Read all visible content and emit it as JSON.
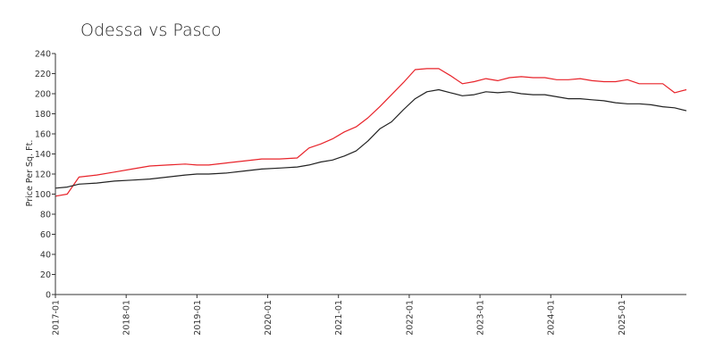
{
  "chart_data": {
    "type": "line",
    "title": "Odessa vs Pasco",
    "xlabel": "",
    "ylabel": "Price Per Sq. Ft.",
    "ylim": [
      0,
      240
    ],
    "yticks": [
      0,
      20,
      40,
      60,
      80,
      100,
      120,
      140,
      160,
      180,
      200,
      220,
      240
    ],
    "xrange": [
      "2017-01",
      "2025-12"
    ],
    "xticks": [
      "2017-01",
      "2018-01",
      "2019-01",
      "2020-01",
      "2021-01",
      "2022-01",
      "2023-01",
      "2024-01",
      "2025-01"
    ],
    "grid": false,
    "legend": "none",
    "series": [
      {
        "color": "#e8232a",
        "x": [
          "2017-01",
          "2017-03",
          "2017-05",
          "2017-08",
          "2017-11",
          "2018-02",
          "2018-05",
          "2018-08",
          "2018-11",
          "2019-01",
          "2019-03",
          "2019-06",
          "2019-09",
          "2019-12",
          "2020-03",
          "2020-06",
          "2020-08",
          "2020-10",
          "2020-12",
          "2021-02",
          "2021-04",
          "2021-06",
          "2021-08",
          "2021-10",
          "2021-12",
          "2022-02",
          "2022-04",
          "2022-06",
          "2022-08",
          "2022-10",
          "2022-12",
          "2023-02",
          "2023-04",
          "2023-06",
          "2023-08",
          "2023-10",
          "2023-12",
          "2024-02",
          "2024-04",
          "2024-06",
          "2024-08",
          "2024-10",
          "2024-12",
          "2025-02",
          "2025-04",
          "2025-06",
          "2025-08",
          "2025-10",
          "2025-12"
        ],
        "values": [
          98,
          100,
          117,
          119,
          122,
          125,
          128,
          129,
          130,
          129,
          129,
          131,
          133,
          135,
          135,
          136,
          146,
          150,
          155,
          162,
          167,
          176,
          187,
          199,
          211,
          224,
          225,
          225,
          218,
          210,
          212,
          215,
          213,
          216,
          217,
          216,
          216,
          214,
          214,
          215,
          213,
          212,
          212,
          214,
          210,
          210,
          210,
          201,
          204
        ]
      },
      {
        "color": "#222222",
        "x": [
          "2017-01",
          "2017-03",
          "2017-05",
          "2017-08",
          "2017-11",
          "2018-02",
          "2018-05",
          "2018-08",
          "2018-11",
          "2019-01",
          "2019-03",
          "2019-06",
          "2019-09",
          "2019-12",
          "2020-03",
          "2020-06",
          "2020-08",
          "2020-10",
          "2020-12",
          "2021-02",
          "2021-04",
          "2021-06",
          "2021-08",
          "2021-10",
          "2021-12",
          "2022-02",
          "2022-04",
          "2022-06",
          "2022-08",
          "2022-10",
          "2022-12",
          "2023-02",
          "2023-04",
          "2023-06",
          "2023-08",
          "2023-10",
          "2023-12",
          "2024-02",
          "2024-04",
          "2024-06",
          "2024-08",
          "2024-10",
          "2024-12",
          "2025-02",
          "2025-04",
          "2025-06",
          "2025-08",
          "2025-10",
          "2025-12"
        ],
        "values": [
          106,
          107,
          110,
          111,
          113,
          114,
          115,
          117,
          119,
          120,
          120,
          121,
          123,
          125,
          126,
          127,
          129,
          132,
          134,
          138,
          143,
          153,
          165,
          172,
          184,
          195,
          202,
          204,
          201,
          198,
          199,
          202,
          201,
          202,
          200,
          199,
          199,
          197,
          195,
          195,
          194,
          193,
          191,
          190,
          190,
          189,
          187,
          186,
          183
        ]
      }
    ]
  }
}
